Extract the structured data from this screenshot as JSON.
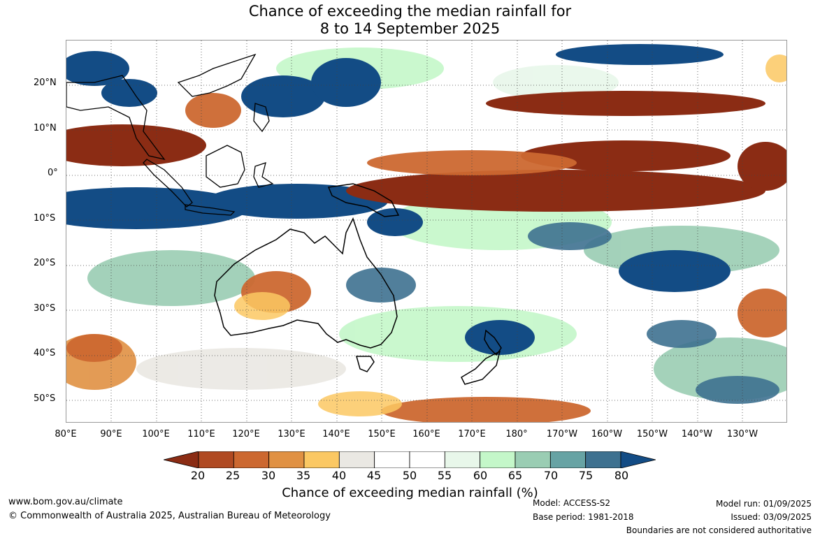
{
  "title": {
    "line1": "Chance of exceeding the median rainfall for",
    "line2": "8 to 14 September 2025"
  },
  "map": {
    "lat_labels": [
      "20°N",
      "10°N",
      "0°",
      "10°S",
      "20°S",
      "30°S",
      "40°S",
      "50°S"
    ],
    "lon_labels": [
      "80°E",
      "90°E",
      "100°E",
      "110°E",
      "120°E",
      "130°E",
      "140°E",
      "150°E",
      "160°E",
      "170°E",
      "180°",
      "170°W",
      "160°W",
      "150°W",
      "140°W",
      "130°W"
    ],
    "lat_range": [
      -55,
      30
    ],
    "lon_range": [
      80,
      240
    ],
    "grid": "dotted 10° graticule"
  },
  "legend": {
    "ticks": [
      "20",
      "25",
      "30",
      "35",
      "40",
      "45",
      "50",
      "55",
      "60",
      "65",
      "70",
      "75",
      "80"
    ],
    "colors": [
      "#8b2c14",
      "#b04a22",
      "#cc6830",
      "#e09143",
      "#fbc863",
      "#eae8e3",
      "#ffffff",
      "#ffffff",
      "#e8f7ea",
      "#c4f7c9",
      "#9acdb3",
      "#67a3a4",
      "#3e7190",
      "#134c85"
    ],
    "title": "Chance of exceeding median rainfall (%)"
  },
  "footer": {
    "website": "www.bom.gov.au/climate",
    "copyright": "© Commonwealth of Australia 2025, Australian Bureau of Meteorology",
    "model": "Model: ACCESS-S2",
    "base_period": "Base period: 1981-2018",
    "model_run": "Model run: 01/09/2025",
    "issued": "Issued: 03/09/2025",
    "disclaimer": "Boundaries are not considered authoritative"
  }
}
